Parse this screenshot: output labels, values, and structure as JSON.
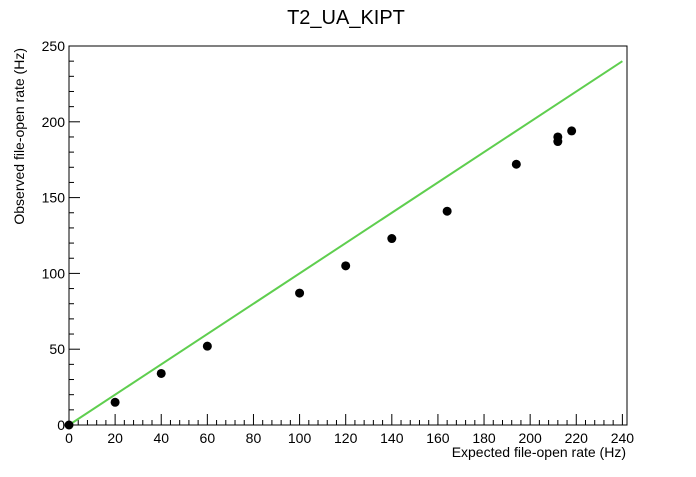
{
  "chart_data": {
    "type": "scatter",
    "title": "T2_UA_KIPT",
    "xlabel": "Expected file-open rate (Hz)",
    "ylabel": "Observed file-open rate (Hz)",
    "xlim": [
      0,
      242
    ],
    "ylim": [
      0,
      250
    ],
    "x_ticks": [
      0,
      20,
      40,
      60,
      80,
      100,
      120,
      140,
      160,
      180,
      200,
      220,
      240
    ],
    "y_ticks": [
      0,
      50,
      100,
      150,
      200,
      250
    ],
    "grid": false,
    "series": [
      {
        "points": [
          {
            "x": 0,
            "y": 0
          },
          {
            "x": 20,
            "y": 15
          },
          {
            "x": 40,
            "y": 34
          },
          {
            "x": 60,
            "y": 52
          },
          {
            "x": 100,
            "y": 87
          },
          {
            "x": 120,
            "y": 105
          },
          {
            "x": 140,
            "y": 123
          },
          {
            "x": 164,
            "y": 141
          },
          {
            "x": 194,
            "y": 172
          },
          {
            "x": 212,
            "y": 187
          },
          {
            "x": 212,
            "y": 190
          },
          {
            "x": 218,
            "y": 194
          }
        ],
        "color": "#000000"
      }
    ],
    "reference_line": {
      "x": [
        0,
        240
      ],
      "y": [
        0,
        240
      ],
      "color": "#5fce4f"
    }
  }
}
